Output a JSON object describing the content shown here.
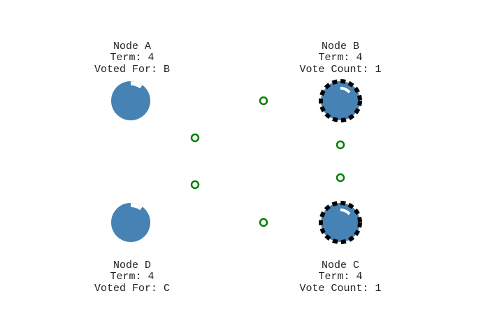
{
  "colors": {
    "node_fill": "#4682b4",
    "candidate_ring": "#000000",
    "message": "#008000",
    "label_text": "#222222"
  },
  "nodes": {
    "a": {
      "name": "Node A",
      "term": "Term: 4",
      "vote": "Voted For: B",
      "role": "follower"
    },
    "b": {
      "name": "Node B",
      "term": "Term: 4",
      "vote": "Vote Count: 1",
      "role": "candidate"
    },
    "c": {
      "name": "Node C",
      "term": "Term: 4",
      "vote": "Vote Count: 1",
      "role": "candidate"
    },
    "d": {
      "name": "Node D",
      "term": "Term: 4",
      "vote": "Voted For: C",
      "role": "follower"
    }
  },
  "messages_in_flight": 6
}
